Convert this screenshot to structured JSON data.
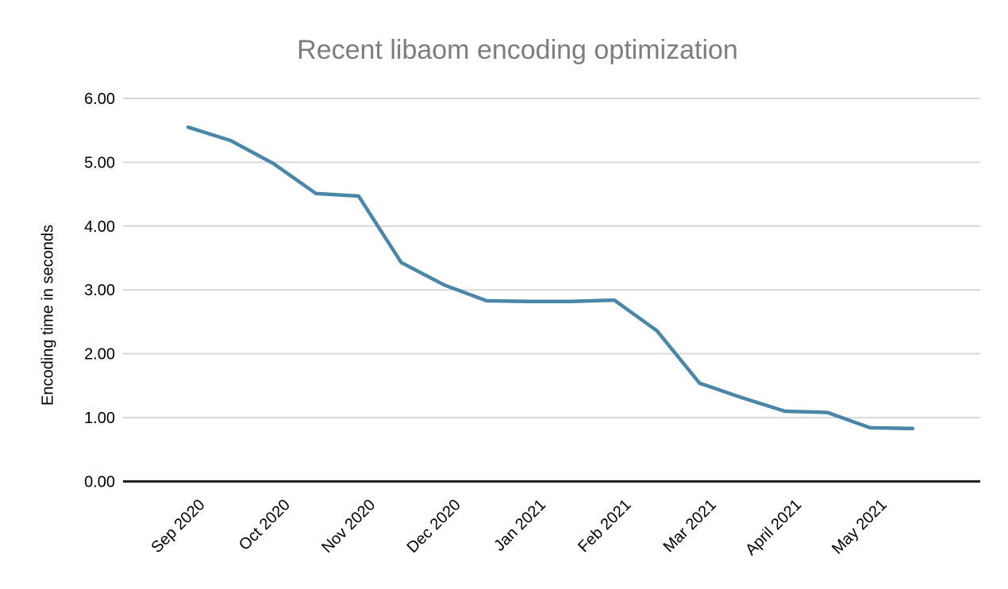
{
  "chart_data": {
    "type": "line",
    "title": "Recent libaom encoding optimization",
    "xlabel": "",
    "ylabel": "Encoding time in seconds",
    "x_tick_labels": [
      "Sep 2020",
      "Oct 2020",
      "Nov 2020",
      "Dec 2020",
      "Jan 2021",
      "Feb 2021",
      "Mar 2021",
      "April 2021",
      "May 2021"
    ],
    "y_tick_labels": [
      "0.00",
      "1.00",
      "2.00",
      "3.00",
      "4.00",
      "5.00",
      "6.00"
    ],
    "ylim": [
      0,
      6
    ],
    "xlim_months": [
      0,
      8.5
    ],
    "grid": "horizontal",
    "legend": "none",
    "x_label_rotation_deg": -45,
    "sampling": "two points per month (semi-monthly)",
    "series": [
      {
        "name": "Encoding time",
        "x_months_from_sep_2020": [
          0,
          0.5,
          1,
          1.5,
          2,
          2.5,
          3,
          3.5,
          4,
          4.5,
          5,
          5.5,
          6,
          6.5,
          7,
          7.5,
          8,
          8.5
        ],
        "values": [
          5.55,
          5.34,
          4.98,
          4.51,
          4.47,
          3.43,
          3.08,
          2.83,
          2.82,
          2.82,
          2.84,
          2.36,
          1.54,
          1.31,
          1.1,
          1.08,
          0.84,
          0.83
        ],
        "color": "#4a86a8"
      }
    ],
    "colors": {
      "title_text": "#7d7d7d",
      "axis_text": "#000000",
      "gridline": "#d9d9d9",
      "axis_line": "#212121",
      "background": "#ffffff"
    }
  }
}
